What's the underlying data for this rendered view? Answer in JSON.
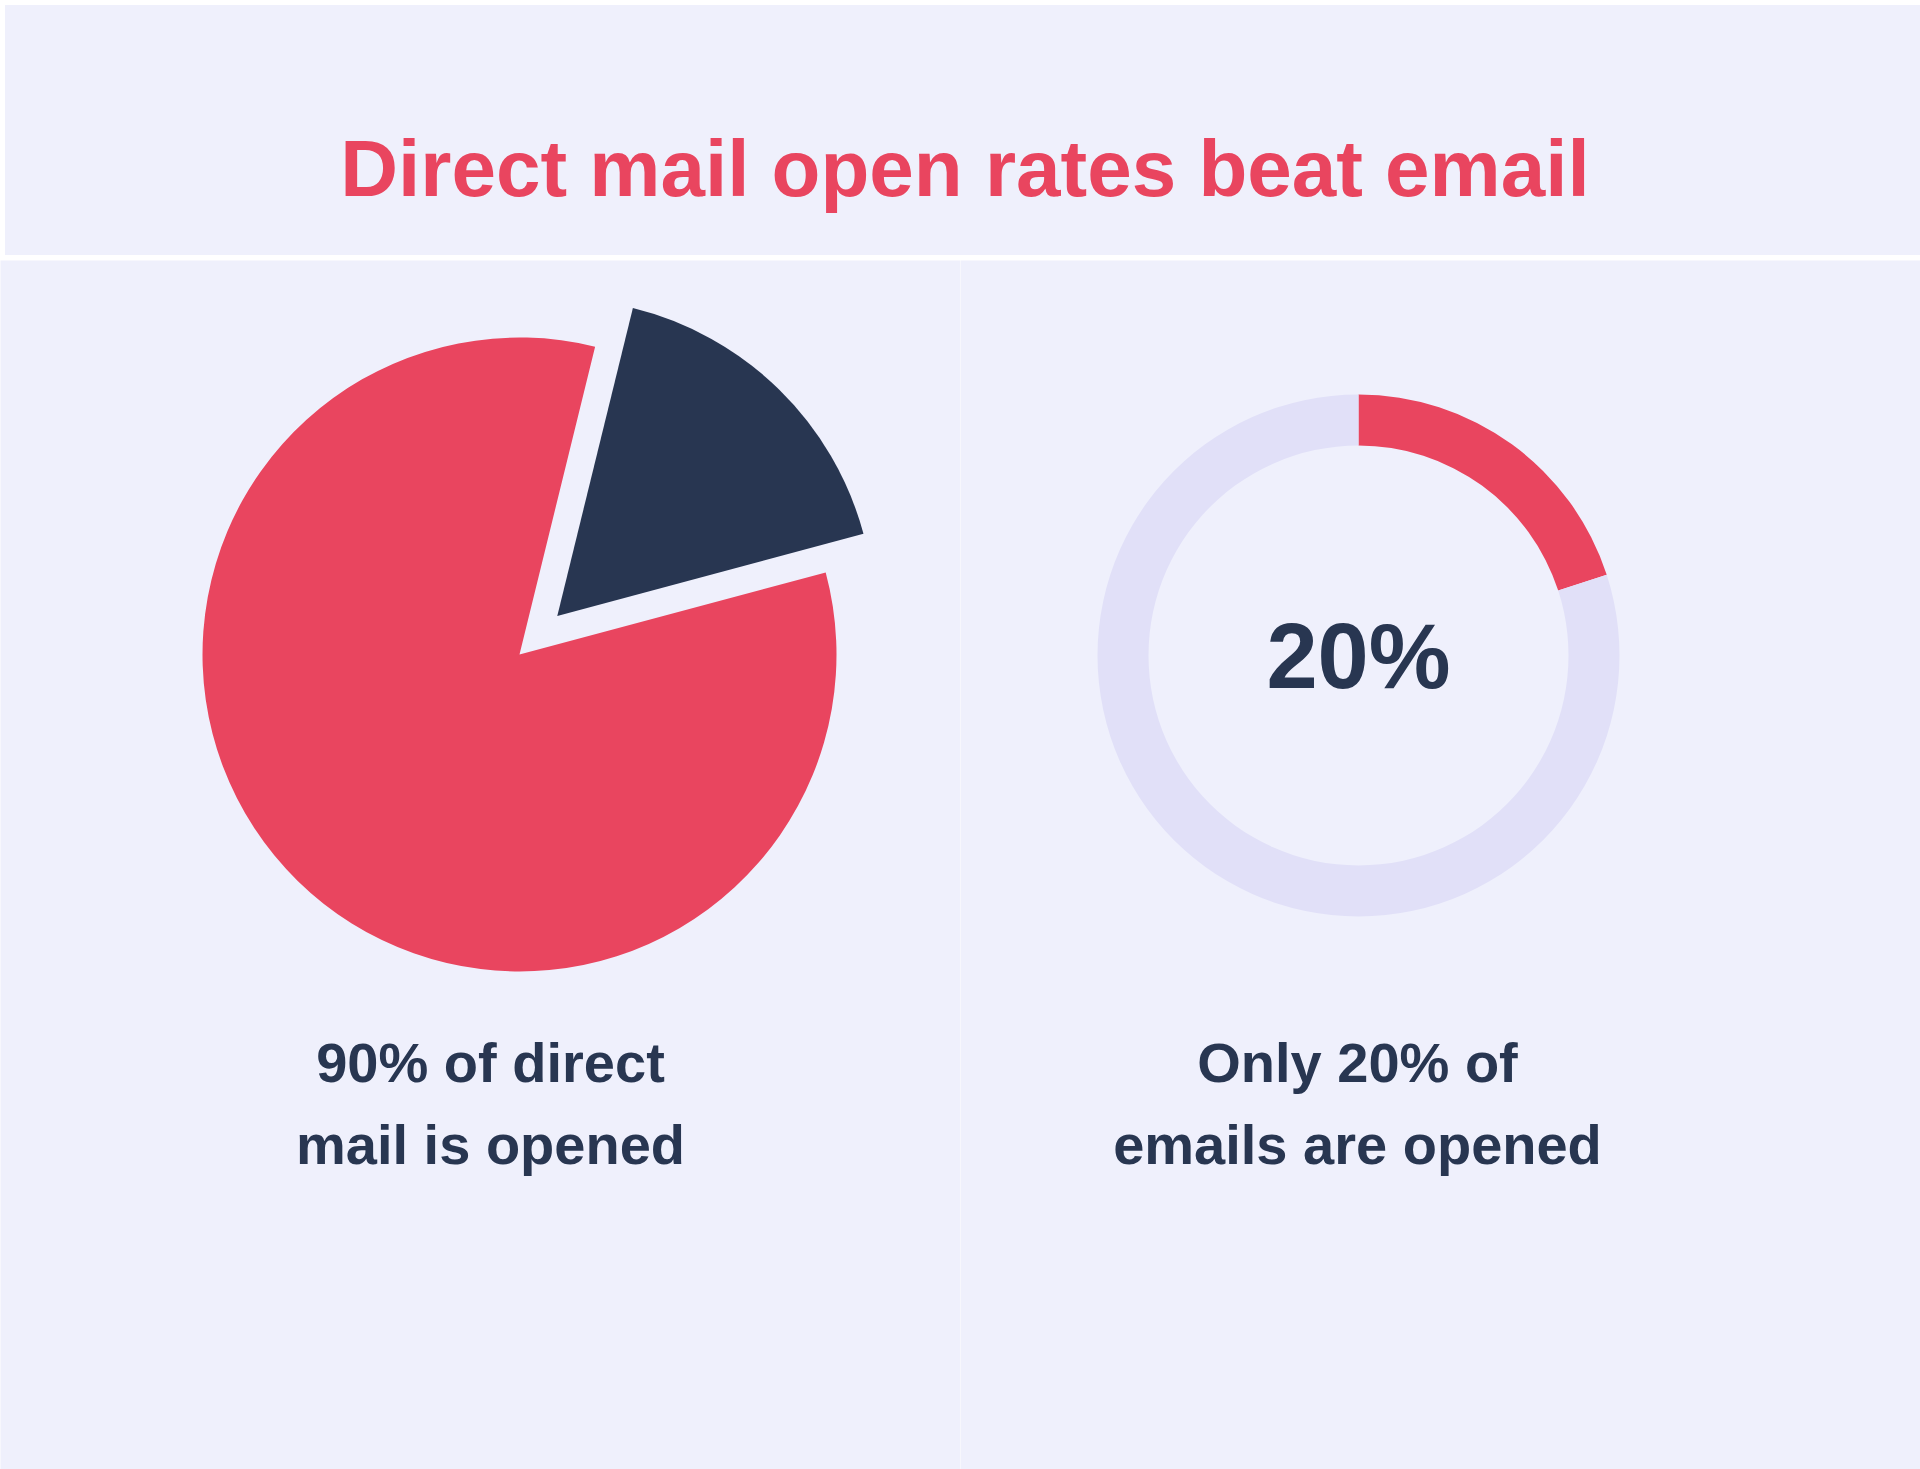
{
  "chart_data": [
    {
      "type": "pie",
      "title": "Direct mail open rates beat email",
      "categories": [
        null,
        null
      ],
      "values": [
        83,
        17
      ],
      "colors": [
        "#e9455f",
        "#283651"
      ],
      "annotations": [
        "90% of direct\nmail is opened"
      ]
    },
    {
      "type": "donut",
      "categories": [
        null,
        null
      ],
      "values": [
        20,
        80
      ],
      "colors": [
        "#e9455f",
        "#e1e0f8"
      ],
      "value_labels": [
        "20%",
        null
      ],
      "annotations": [
        "Only 20% of\nemails are opened"
      ]
    }
  ]
}
